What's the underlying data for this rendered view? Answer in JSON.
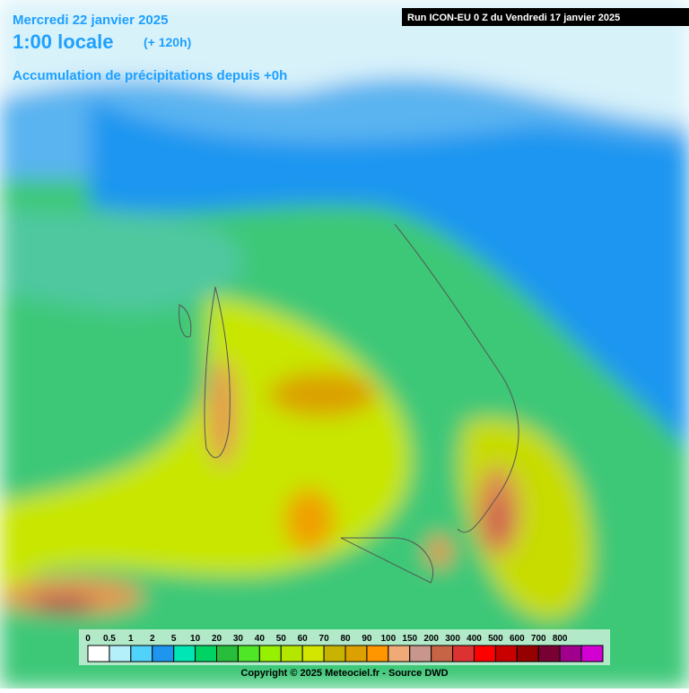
{
  "header": {
    "date": "Mercredi 22 janvier 2025",
    "time": "1:00 locale",
    "offset": "(+ 120h)",
    "subtitle": "Accumulation de précipitations depuis +0h",
    "run": "Run ICON-EU 0 Z du Vendredi 17 janvier 2025"
  },
  "legend": {
    "labels": [
      "0",
      "0.5",
      "1",
      "2",
      "5",
      "10",
      "20",
      "30",
      "40",
      "50",
      "60",
      "70",
      "80",
      "90",
      "100",
      "150",
      "200",
      "300",
      "400",
      "500",
      "600",
      "700",
      "800"
    ],
    "colors": [
      "#ffffff",
      "#b4f0fa",
      "#50d2fa",
      "#1e96f0",
      "#00e6b4",
      "#00d264",
      "#28be3c",
      "#50e628",
      "#96f000",
      "#b4e600",
      "#d2e600",
      "#c8b400",
      "#dca000",
      "#ff9600",
      "#f0aa78",
      "#c8968c",
      "#c86446",
      "#dc3232",
      "#ff0000",
      "#c80000",
      "#960000",
      "#780032",
      "#a0008c",
      "#d200d2"
    ]
  },
  "footer": {
    "copyright": "Copyright © 2025 Meteociel.fr - Source DWD"
  }
}
